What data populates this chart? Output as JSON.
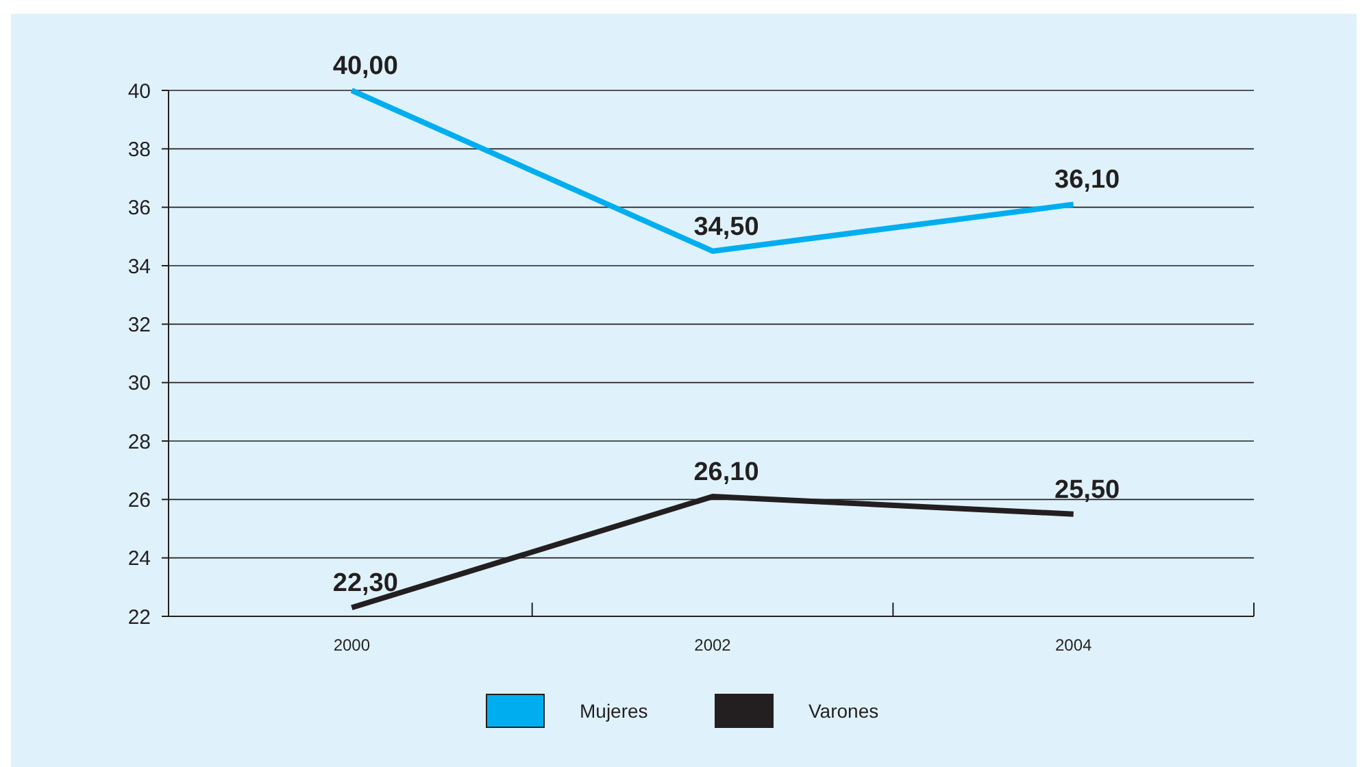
{
  "chart_data": {
    "type": "line",
    "categories": [
      "2000",
      "2002",
      "2004"
    ],
    "series": [
      {
        "name": "Mujeres",
        "color": "#00aeef",
        "values": [
          40,
          34.5,
          36.1
        ],
        "value_labels": [
          "40,00",
          "34,50",
          "36,10"
        ]
      },
      {
        "name": "Varones",
        "color": "#231f20",
        "values": [
          22.3,
          26.1,
          25.5
        ],
        "value_labels": [
          "22,30",
          "26,10",
          "25,50"
        ]
      }
    ],
    "ylim": [
      22,
      40
    ],
    "yticks": [
      22,
      24,
      26,
      28,
      30,
      32,
      34,
      36,
      38,
      40
    ],
    "grid": "y",
    "legend": "bottom",
    "marker": "none",
    "line_style": "solid"
  }
}
